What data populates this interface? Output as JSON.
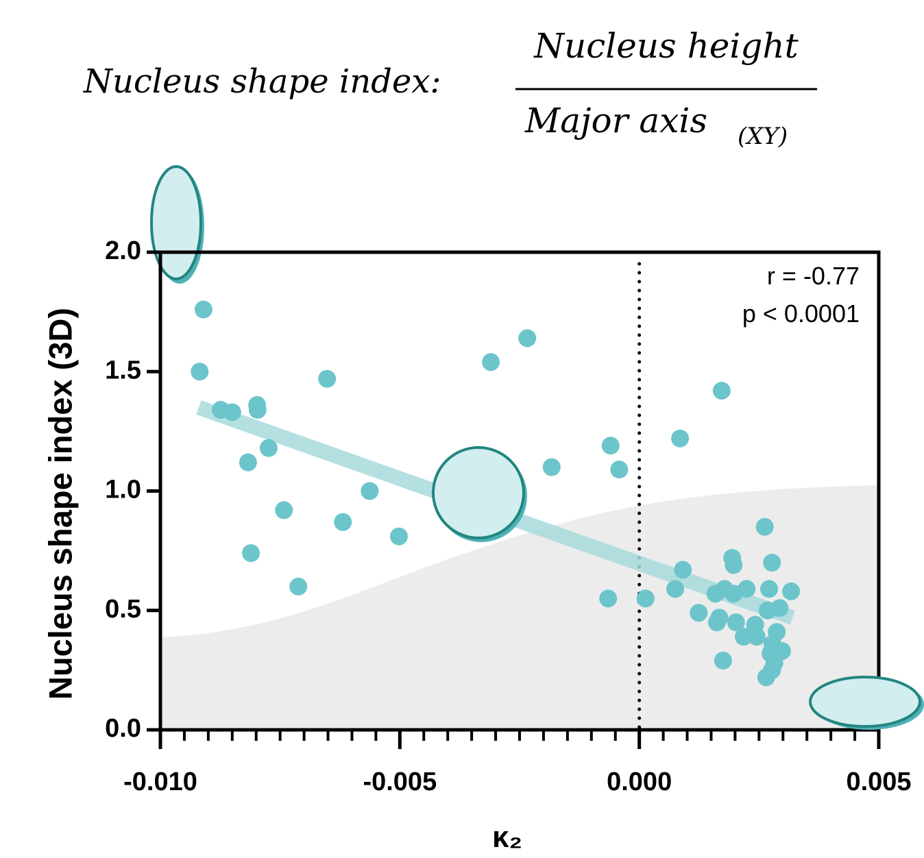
{
  "chart_data": {
    "type": "scatter",
    "title": {
      "label": "Nucleus shape index:",
      "numerator": "Nucleus height",
      "denominator": "Major axis",
      "subscript": "(XY)"
    },
    "x_label": "κ₂",
    "y_label": "Nucleus shape index (3D)",
    "annotations": [
      "r = -0.77",
      "p < 0.0001"
    ],
    "xlim": [
      -0.01,
      0.005
    ],
    "ylim": [
      0,
      2.0
    ],
    "xticks": [
      {
        "value": -0.01,
        "label": "-0.010"
      },
      {
        "value": -0.005,
        "label": "-0.005"
      },
      {
        "value": 0,
        "label": "0.000"
      },
      {
        "value": 0.005,
        "label": "0.005"
      }
    ],
    "xminorticks": [
      -0.0095,
      -0.009,
      -0.0085,
      -0.008,
      -0.0075,
      -0.007,
      -0.0065,
      -0.006,
      -0.0055,
      -0.0045,
      -0.004,
      -0.0035,
      -0.003,
      -0.0025,
      -0.002,
      -0.0015,
      -0.001,
      -0.0005,
      0.0005,
      0.001,
      0.0015,
      0.002,
      0.0025,
      0.003,
      0.0035,
      0.004,
      0.0045
    ],
    "yticks": [
      {
        "value": 0,
        "label": "0.0"
      },
      0.5,
      {
        "value": 1,
        "label": "1.0"
      },
      1.5,
      {
        "value": 2,
        "label": "2.0"
      }
    ],
    "vline": 0,
    "trend_line": {
      "x": [
        -0.0092,
        0.0032
      ],
      "y": [
        1.35,
        0.47
      ],
      "color": "#a8dbdd"
    },
    "series": [
      {
        "color": "#6cc5ca",
        "x": [
          -0.0091,
          -0.00918,
          -0.00874,
          -0.0085,
          -0.00798,
          -0.00797,
          -0.00774,
          -0.00817,
          -0.00742,
          -0.00811,
          -0.00712,
          -0.00652,
          -0.00619,
          -0.00563,
          -0.00502,
          -0.0031,
          -0.00234,
          -0.00183,
          -0.0006,
          -0.00042,
          -0.00065,
          0.00013,
          0.00085,
          0.00172,
          0.00091,
          0.00075,
          0.00124,
          0.00262,
          0.00194,
          0.00197,
          0.00277,
          0.00159,
          0.00178,
          0.00224,
          0.00271,
          0.00317,
          0.00197,
          0.00293,
          0.00268,
          0.00167,
          0.00162,
          0.00202,
          0.00242,
          0.00287,
          0.00218,
          0.00245,
          0.00278,
          0.00298,
          0.00274,
          0.00282,
          0.00175,
          0.00277,
          0.00265
        ],
        "values": [
          1.76,
          1.5,
          1.34,
          1.33,
          1.36,
          1.34,
          1.18,
          1.12,
          0.92,
          0.74,
          0.6,
          1.47,
          0.87,
          1.0,
          0.81,
          1.54,
          1.64,
          1.1,
          1.19,
          1.09,
          0.55,
          0.55,
          1.22,
          1.42,
          0.67,
          0.59,
          0.49,
          0.85,
          0.72,
          0.69,
          0.7,
          0.57,
          0.59,
          0.59,
          0.59,
          0.58,
          0.57,
          0.51,
          0.5,
          0.47,
          0.45,
          0.45,
          0.44,
          0.41,
          0.39,
          0.39,
          0.36,
          0.33,
          0.32,
          0.28,
          0.29,
          0.25,
          0.22
        ]
      }
    ]
  }
}
